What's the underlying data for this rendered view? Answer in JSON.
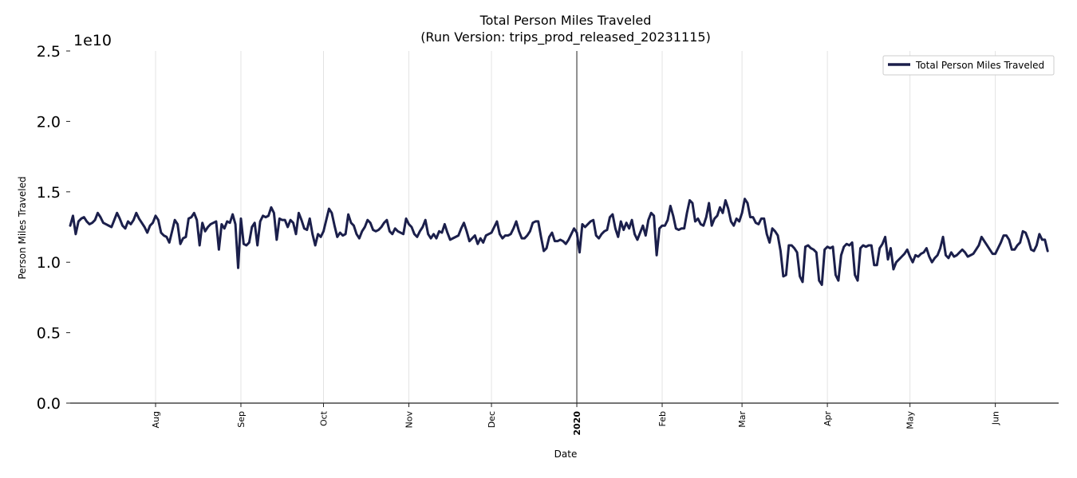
{
  "chart_data": {
    "type": "line",
    "title": "Total Person Miles Traveled",
    "subtitle": "(Run Version: trips_prod_released_20231115)",
    "xlabel": "Date",
    "ylabel": "Person Miles Traveled",
    "y_offset_label": "1e10",
    "y_scale": 10000000000,
    "ylim": [
      0,
      2.5
    ],
    "y_ticks": [
      {
        "value": 0.0,
        "label": "0.0"
      },
      {
        "value": 0.5,
        "label": "0.5"
      },
      {
        "value": 1.0,
        "label": "1.0"
      },
      {
        "value": 1.5,
        "label": "1.5"
      },
      {
        "value": 2.0,
        "label": "2.0"
      },
      {
        "value": 2.5,
        "label": "2.5"
      }
    ],
    "x_range_days": [
      0,
      359
    ],
    "x_ticks": [
      {
        "day": 31,
        "label": "Aug",
        "bold": false
      },
      {
        "day": 62,
        "label": "Sep",
        "bold": false
      },
      {
        "day": 92,
        "label": "Oct",
        "bold": false
      },
      {
        "day": 123,
        "label": "Nov",
        "bold": false
      },
      {
        "day": 153,
        "label": "Dec",
        "bold": false
      },
      {
        "day": 184,
        "label": "2020",
        "bold": true
      },
      {
        "day": 215,
        "label": "Feb",
        "bold": false
      },
      {
        "day": 244,
        "label": "Mar",
        "bold": false
      },
      {
        "day": 275,
        "label": "Apr",
        "bold": false
      },
      {
        "day": 305,
        "label": "May",
        "bold": false
      },
      {
        "day": 336,
        "label": "Jun",
        "bold": false
      }
    ],
    "grid": "vertical",
    "legend": "top-right",
    "series": [
      {
        "name": "Total Person Miles Traveled",
        "color": "#1b1f4b",
        "x_start_label": "2019-07-01",
        "x_step_days": 1,
        "values": [
          1.26,
          1.33,
          1.2,
          1.29,
          1.31,
          1.32,
          1.29,
          1.27,
          1.28,
          1.3,
          1.35,
          1.32,
          1.28,
          1.27,
          1.26,
          1.25,
          1.3,
          1.35,
          1.31,
          1.26,
          1.24,
          1.29,
          1.27,
          1.3,
          1.35,
          1.31,
          1.28,
          1.25,
          1.21,
          1.26,
          1.28,
          1.33,
          1.3,
          1.21,
          1.19,
          1.18,
          1.14,
          1.22,
          1.3,
          1.27,
          1.13,
          1.17,
          1.18,
          1.31,
          1.32,
          1.35,
          1.3,
          1.12,
          1.28,
          1.22,
          1.25,
          1.27,
          1.28,
          1.29,
          1.09,
          1.27,
          1.24,
          1.29,
          1.28,
          1.34,
          1.27,
          0.96,
          1.31,
          1.13,
          1.12,
          1.14,
          1.25,
          1.28,
          1.12,
          1.29,
          1.33,
          1.32,
          1.33,
          1.39,
          1.35,
          1.16,
          1.31,
          1.3,
          1.3,
          1.25,
          1.3,
          1.28,
          1.2,
          1.35,
          1.3,
          1.24,
          1.23,
          1.31,
          1.2,
          1.12,
          1.2,
          1.18,
          1.22,
          1.3,
          1.38,
          1.35,
          1.26,
          1.18,
          1.21,
          1.19,
          1.2,
          1.34,
          1.28,
          1.26,
          1.2,
          1.17,
          1.22,
          1.25,
          1.3,
          1.28,
          1.23,
          1.22,
          1.23,
          1.25,
          1.28,
          1.3,
          1.22,
          1.2,
          1.24,
          1.22,
          1.21,
          1.2,
          1.31,
          1.27,
          1.25,
          1.2,
          1.18,
          1.22,
          1.25,
          1.3,
          1.2,
          1.17,
          1.2,
          1.17,
          1.22,
          1.21,
          1.27,
          1.21,
          1.16,
          1.17,
          1.18,
          1.19,
          1.24,
          1.28,
          1.22,
          1.15,
          1.17,
          1.19,
          1.13,
          1.17,
          1.14,
          1.19,
          1.2,
          1.21,
          1.25,
          1.29,
          1.2,
          1.17,
          1.19,
          1.19,
          1.2,
          1.24,
          1.29,
          1.22,
          1.17,
          1.17,
          1.19,
          1.22,
          1.28,
          1.29,
          1.29,
          1.18,
          1.08,
          1.1,
          1.18,
          1.21,
          1.15,
          1.15,
          1.16,
          1.15,
          1.13,
          1.16,
          1.2,
          1.24,
          1.21,
          1.07,
          1.27,
          1.25,
          1.27,
          1.29,
          1.3,
          1.19,
          1.17,
          1.2,
          1.22,
          1.23,
          1.32,
          1.34,
          1.24,
          1.18,
          1.29,
          1.23,
          1.28,
          1.24,
          1.3,
          1.2,
          1.16,
          1.21,
          1.26,
          1.19,
          1.3,
          1.35,
          1.33,
          1.05,
          1.24,
          1.26,
          1.26,
          1.3,
          1.4,
          1.33,
          1.24,
          1.23,
          1.24,
          1.24,
          1.35,
          1.44,
          1.42,
          1.29,
          1.31,
          1.27,
          1.26,
          1.32,
          1.42,
          1.26,
          1.31,
          1.33,
          1.39,
          1.35,
          1.44,
          1.38,
          1.29,
          1.26,
          1.31,
          1.29,
          1.35,
          1.45,
          1.42,
          1.32,
          1.32,
          1.28,
          1.27,
          1.31,
          1.31,
          1.2,
          1.14,
          1.24,
          1.22,
          1.19,
          1.08,
          0.9,
          0.91,
          1.12,
          1.12,
          1.1,
          1.07,
          0.9,
          0.86,
          1.11,
          1.12,
          1.1,
          1.09,
          1.07,
          0.87,
          0.84,
          1.09,
          1.11,
          1.1,
          1.11,
          0.91,
          0.87,
          1.05,
          1.11,
          1.13,
          1.12,
          1.14,
          0.91,
          0.87,
          1.1,
          1.12,
          1.11,
          1.12,
          1.12,
          0.98,
          0.98,
          1.1,
          1.13,
          1.18,
          1.02,
          1.1,
          0.95,
          1.0,
          1.02,
          1.04,
          1.06,
          1.09,
          1.04,
          1.0,
          1.05,
          1.04,
          1.06,
          1.07,
          1.1,
          1.04,
          1.0,
          1.03,
          1.05,
          1.1,
          1.18,
          1.05,
          1.03,
          1.07,
          1.04,
          1.05,
          1.07,
          1.09,
          1.07,
          1.04,
          1.05,
          1.06,
          1.09,
          1.12,
          1.18,
          1.15,
          1.12,
          1.09,
          1.06,
          1.06,
          1.1,
          1.14,
          1.19,
          1.19,
          1.16,
          1.09,
          1.09,
          1.12,
          1.14,
          1.22,
          1.21,
          1.16,
          1.09,
          1.08,
          1.12,
          1.2,
          1.16,
          1.16,
          1.08
        ]
      }
    ]
  }
}
